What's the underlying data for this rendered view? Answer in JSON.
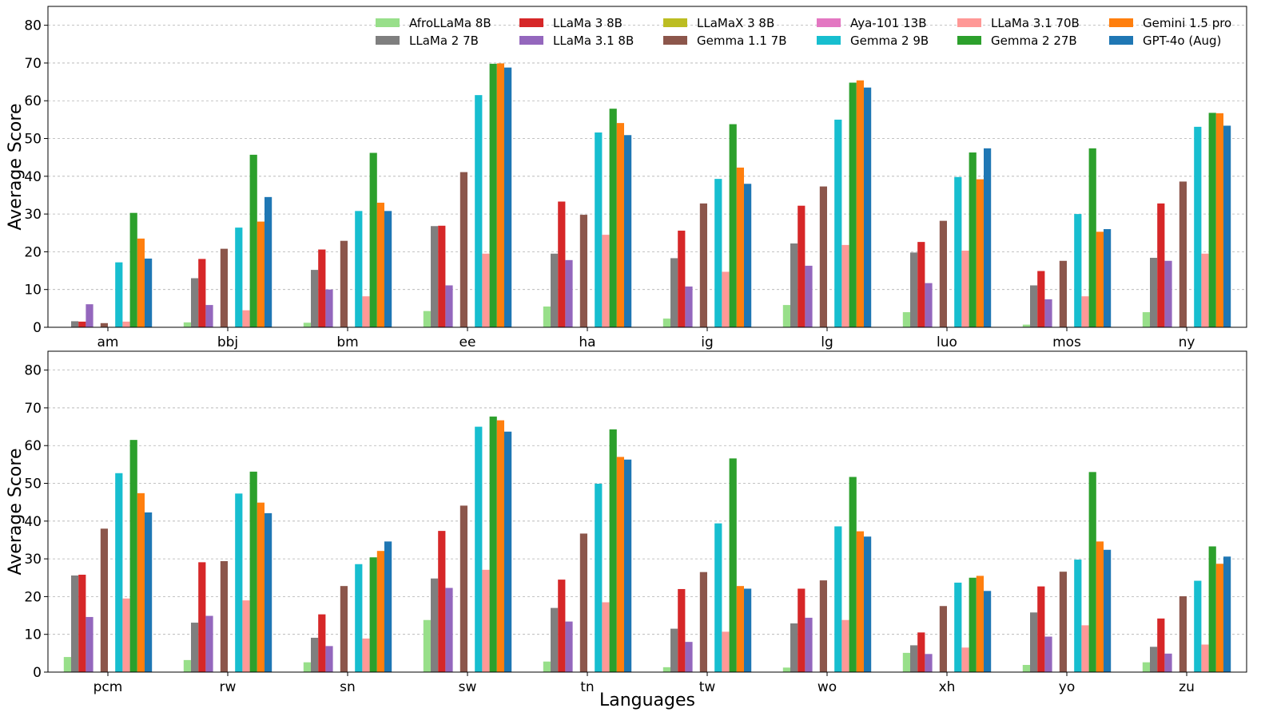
{
  "chart_data": [
    {
      "type": "bar",
      "ylabel": "Average Score",
      "xlabel": "",
      "ylim": [
        0,
        85
      ],
      "yticks": [
        0,
        10,
        20,
        30,
        40,
        50,
        60,
        70,
        80
      ],
      "grid": "y-dashed",
      "legend_position": "top-right",
      "categories": [
        "am",
        "bbj",
        "bm",
        "ee",
        "ha",
        "ig",
        "lg",
        "luo",
        "mos",
        "ny"
      ],
      "series": [
        {
          "name": "AfroLLaMa 8B",
          "color": "#98df8a",
          "values": [
            0,
            1.3,
            1.2,
            4.3,
            5.5,
            2.3,
            5.9,
            4.0,
            0.7,
            4.0
          ]
        },
        {
          "name": "LLaMa 2 7B",
          "color": "#7f7f7f",
          "values": [
            1.6,
            13.0,
            15.2,
            26.8,
            19.5,
            18.3,
            22.2,
            19.8,
            11.1,
            18.4
          ]
        },
        {
          "name": "LLaMa 3 8B",
          "color": "#d62728",
          "values": [
            1.5,
            18.1,
            20.6,
            26.9,
            33.3,
            25.6,
            32.2,
            22.6,
            14.9,
            32.8
          ]
        },
        {
          "name": "LLaMa 3.1 8B",
          "color": "#9467bd",
          "values": [
            6.1,
            5.9,
            10.0,
            11.1,
            17.8,
            10.8,
            16.3,
            11.7,
            7.4,
            17.6
          ]
        },
        {
          "name": "LLaMaX 3 8B",
          "color": "#bcbd22",
          "values": [
            0,
            0,
            0,
            0,
            0,
            0,
            0,
            0,
            0,
            0
          ]
        },
        {
          "name": "Gemma 1.1 7B",
          "color": "#8c564b",
          "values": [
            1.1,
            20.8,
            22.9,
            41.1,
            29.8,
            32.8,
            37.3,
            28.2,
            17.6,
            38.6
          ]
        },
        {
          "name": "Aya-101 13B",
          "color": "#e377c2",
          "values": [
            0,
            0,
            0,
            0,
            0,
            0,
            0,
            0,
            0,
            0
          ]
        },
        {
          "name": "Gemma 2 9B",
          "color": "#17becf",
          "values": [
            17.2,
            26.4,
            30.8,
            61.5,
            51.6,
            39.3,
            55.0,
            39.8,
            30.0,
            53.1
          ]
        },
        {
          "name": "LLaMa 3.1 70B",
          "color": "#ff9896",
          "values": [
            1.5,
            4.5,
            8.2,
            19.5,
            24.5,
            14.7,
            21.8,
            20.3,
            8.2,
            19.5
          ]
        },
        {
          "name": "Gemma 2 27B",
          "color": "#2ca02c",
          "values": [
            30.3,
            45.7,
            46.2,
            69.8,
            57.9,
            53.8,
            64.8,
            46.3,
            47.4,
            56.8
          ]
        },
        {
          "name": "Gemini 1.5 pro",
          "color": "#ff7f0e",
          "values": [
            23.5,
            28.0,
            33.0,
            69.9,
            54.1,
            42.3,
            65.4,
            39.2,
            25.3,
            56.7
          ]
        },
        {
          "name": "GPT-4o (Aug)",
          "color": "#1f77b4",
          "values": [
            18.2,
            34.5,
            30.8,
            68.8,
            50.9,
            38.0,
            63.5,
            47.4,
            26.0,
            53.4
          ]
        }
      ]
    },
    {
      "type": "bar",
      "ylabel": "Average Score",
      "xlabel": "Languages",
      "ylim": [
        0,
        85
      ],
      "yticks": [
        0,
        10,
        20,
        30,
        40,
        50,
        60,
        70,
        80
      ],
      "grid": "y-dashed",
      "categories": [
        "pcm",
        "rw",
        "sn",
        "sw",
        "tn",
        "tw",
        "wo",
        "xh",
        "yo",
        "zu"
      ],
      "series": [
        {
          "name": "AfroLLaMa 8B",
          "color": "#98df8a",
          "values": [
            4.0,
            3.2,
            2.6,
            13.8,
            2.8,
            1.3,
            1.2,
            5.1,
            1.9,
            2.6
          ]
        },
        {
          "name": "LLaMa 2 7B",
          "color": "#7f7f7f",
          "values": [
            25.6,
            13.1,
            9.1,
            24.8,
            17.0,
            11.5,
            12.9,
            7.1,
            15.8,
            6.7
          ]
        },
        {
          "name": "LLaMa 3 8B",
          "color": "#d62728",
          "values": [
            25.8,
            29.1,
            15.3,
            37.4,
            24.5,
            22.0,
            22.1,
            10.5,
            22.7,
            14.2
          ]
        },
        {
          "name": "LLaMa 3.1 8B",
          "color": "#9467bd",
          "values": [
            14.6,
            14.9,
            6.9,
            22.3,
            13.4,
            8.0,
            14.4,
            4.8,
            9.4,
            4.9
          ]
        },
        {
          "name": "LLaMaX 3 8B",
          "color": "#bcbd22",
          "values": [
            0,
            0,
            0,
            0,
            0,
            0,
            0,
            0,
            0,
            0
          ]
        },
        {
          "name": "Gemma 1.1 7B",
          "color": "#8c564b",
          "values": [
            38.0,
            29.4,
            22.8,
            44.1,
            36.7,
            26.5,
            24.3,
            17.5,
            26.6,
            20.1
          ]
        },
        {
          "name": "Aya-101 13B",
          "color": "#e377c2",
          "values": [
            0,
            0,
            0,
            0,
            0,
            0,
            0,
            0,
            0,
            0
          ]
        },
        {
          "name": "Gemma 2 9B",
          "color": "#17becf",
          "values": [
            52.7,
            47.3,
            28.6,
            65.0,
            49.9,
            39.4,
            38.6,
            23.7,
            29.8,
            24.2
          ]
        },
        {
          "name": "LLaMa 3.1 70B",
          "color": "#ff9896",
          "values": [
            19.5,
            19.0,
            8.9,
            27.1,
            18.5,
            10.7,
            13.8,
            6.5,
            12.4,
            7.3
          ]
        },
        {
          "name": "Gemma 2 27B",
          "color": "#2ca02c",
          "values": [
            61.5,
            53.1,
            30.4,
            67.7,
            64.3,
            56.6,
            51.7,
            25.0,
            53.0,
            33.3
          ]
        },
        {
          "name": "Gemini 1.5 pro",
          "color": "#ff7f0e",
          "values": [
            47.4,
            44.9,
            32.1,
            66.7,
            57.0,
            22.8,
            37.3,
            25.5,
            34.6,
            28.7
          ]
        },
        {
          "name": "GPT-4o (Aug)",
          "color": "#1f77b4",
          "values": [
            42.3,
            42.1,
            34.6,
            63.7,
            56.3,
            22.1,
            35.9,
            21.5,
            32.4,
            30.6
          ]
        }
      ]
    }
  ]
}
